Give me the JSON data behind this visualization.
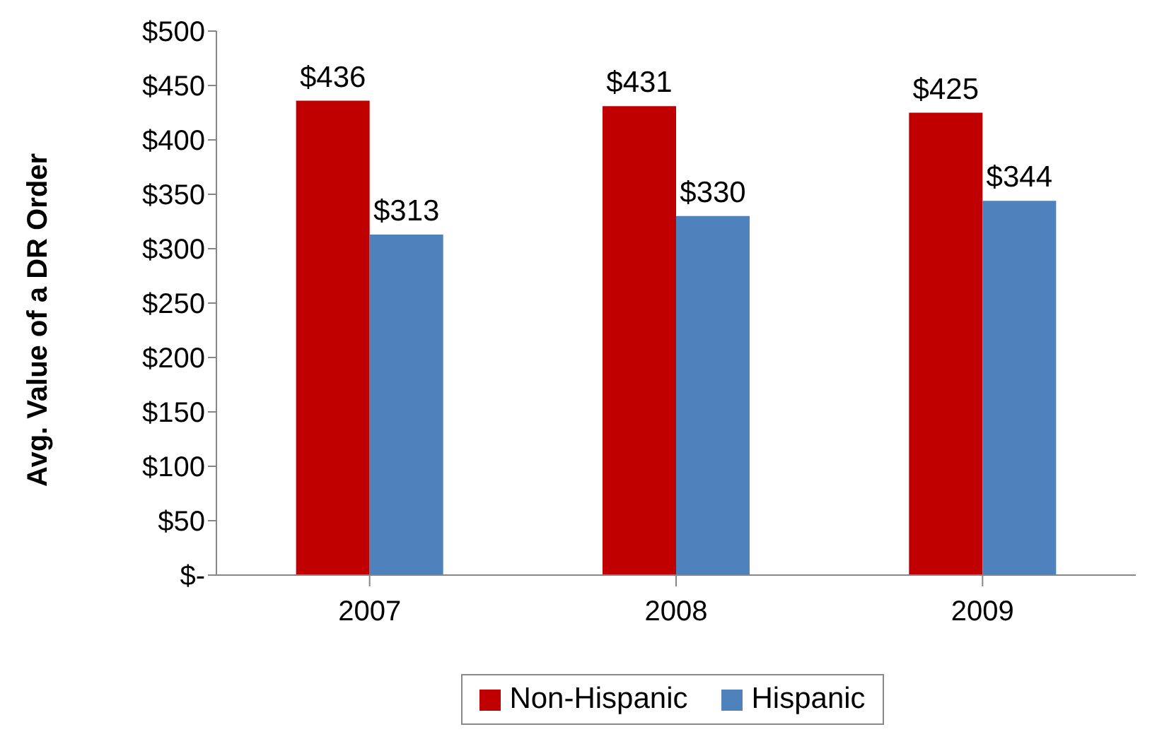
{
  "chart_data": {
    "type": "bar",
    "ylabel": "Avg. Value of a DR Order",
    "categories": [
      "2007",
      "2008",
      "2009"
    ],
    "series": [
      {
        "name": "Non-Hispanic",
        "color": "#c00000",
        "values": [
          436,
          431,
          425
        ],
        "value_labels": [
          "$436",
          "$431",
          "$425"
        ]
      },
      {
        "name": "Hispanic",
        "color": "#4f81bd",
        "values": [
          313,
          330,
          344
        ],
        "value_labels": [
          "$313",
          "$330",
          "$344"
        ]
      }
    ],
    "ylim": [
      0,
      500
    ],
    "yticks": [
      {
        "value": 0,
        "label": "$-"
      },
      {
        "value": 50,
        "label": "$50"
      },
      {
        "value": 100,
        "label": "$100"
      },
      {
        "value": 150,
        "label": "$150"
      },
      {
        "value": 200,
        "label": "$200"
      },
      {
        "value": 250,
        "label": "$250"
      },
      {
        "value": 300,
        "label": "$300"
      },
      {
        "value": 350,
        "label": "$350"
      },
      {
        "value": 400,
        "label": "$400"
      },
      {
        "value": 450,
        "label": "$450"
      },
      {
        "value": 500,
        "label": "$500"
      }
    ],
    "grid": false,
    "legend": "bottom"
  }
}
